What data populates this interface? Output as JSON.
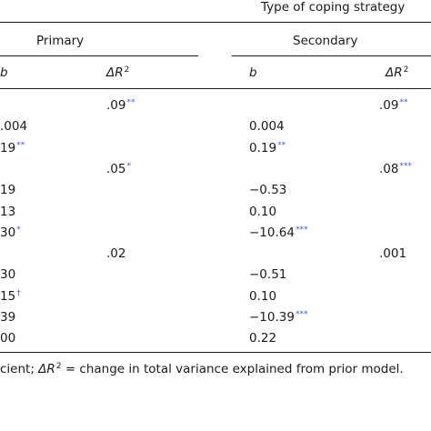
{
  "table": {
    "header_title": "Type of coping strategy",
    "col_primary": "Primary",
    "col_secondary": "Secondary",
    "sub_headers": {
      "p_b": "b",
      "p_dr": "ΔR",
      "p_dr_sup": "2",
      "s_b": "b",
      "s_dr": "ΔR",
      "s_dr_sup": "2"
    },
    "rows": [
      {
        "p_b": "",
        "p_b_sig": "",
        "p_dr": ".09",
        "p_dr_sig": "**",
        "s_b": "",
        "s_b_sig": "",
        "s_dr": ".09",
        "s_dr_sig": "**"
      },
      {
        "p_b": ".004",
        "p_b_sig": "",
        "p_dr": "",
        "p_dr_sig": "",
        "s_b": "0.004",
        "s_b_sig": "",
        "s_dr": "",
        "s_dr_sig": ""
      },
      {
        "p_b": "19",
        "p_b_sig": "**",
        "p_dr": "",
        "p_dr_sig": "",
        "s_b": "0.19",
        "s_b_sig": "**",
        "s_dr": "",
        "s_dr_sig": ""
      },
      {
        "p_b": "",
        "p_b_sig": "",
        "p_dr": ".05",
        "p_dr_sig": "*",
        "s_b": "",
        "s_b_sig": "",
        "s_dr": ".08",
        "s_dr_sig": "***"
      },
      {
        "p_b": "19",
        "p_b_sig": "",
        "p_dr": "",
        "p_dr_sig": "",
        "s_b": "−0.53",
        "s_b_sig": "",
        "s_dr": "",
        "s_dr_sig": ""
      },
      {
        "p_b": "13",
        "p_b_sig": "",
        "p_dr": "",
        "p_dr_sig": "",
        "s_b": "0.10",
        "s_b_sig": "",
        "s_dr": "",
        "s_dr_sig": ""
      },
      {
        "p_b": "30",
        "p_b_sig": "*",
        "p_dr": "",
        "p_dr_sig": "",
        "s_b": "−10.64",
        "s_b_sig": "***",
        "s_dr": "",
        "s_dr_sig": ""
      },
      {
        "p_b": "",
        "p_b_sig": "",
        "p_dr": ".02",
        "p_dr_sig": "",
        "s_b": "",
        "s_b_sig": "",
        "s_dr": ".001",
        "s_dr_sig": ""
      },
      {
        "p_b": "30",
        "p_b_sig": "",
        "p_dr": "",
        "p_dr_sig": "",
        "s_b": "−0.51",
        "s_b_sig": "",
        "s_dr": "",
        "s_dr_sig": ""
      },
      {
        "p_b": "15",
        "p_b_sig": "†",
        "p_dr": "",
        "p_dr_sig": "",
        "s_b": "0.10",
        "s_b_sig": "",
        "s_dr": "",
        "s_dr_sig": ""
      },
      {
        "p_b": "39",
        "p_b_sig": "",
        "p_dr": "",
        "p_dr_sig": "",
        "s_b": "−10.39",
        "s_b_sig": "***",
        "s_dr": "",
        "s_dr_sig": ""
      },
      {
        "p_b": "00",
        "p_b_sig": "",
        "p_dr": "",
        "p_dr_sig": "",
        "s_b": "0.22",
        "s_b_sig": "",
        "s_dr": "",
        "s_dr_sig": ""
      }
    ],
    "footnote": {
      "pre": "cient; ",
      "dr": "ΔR",
      "dr_sup": "2",
      "post": " = change in total variance explained from prior model."
    }
  },
  "colors": {
    "text": "#1a1a1a",
    "significance_markers": "#3b5bd4"
  }
}
